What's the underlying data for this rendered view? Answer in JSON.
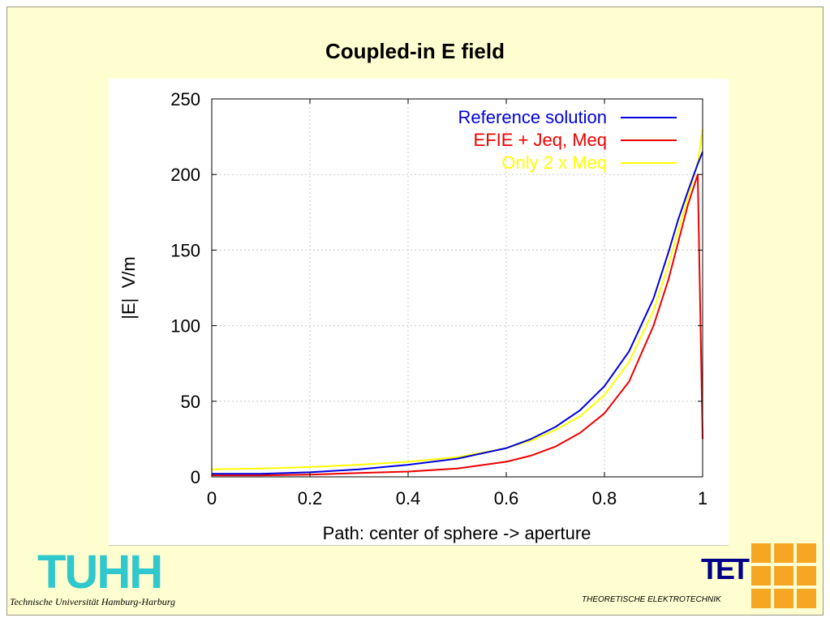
{
  "slide": {
    "title": "Coupled-in E field"
  },
  "footer": {
    "left_logo_text": "TUHH",
    "left_logo_subtitle": "Technische Universität Hamburg-Harburg",
    "right_logo_text": "TET",
    "right_logo_subtitle": "THEORETISCHE ELEKTROTECHNIK",
    "left_logo_color": "#30c8cc",
    "right_logo_color": "#000088",
    "right_grid_color": "#f5a623"
  },
  "chart_data": {
    "type": "line",
    "title": "",
    "xlabel": "Path: center of sphere -> aperture",
    "ylabel": "|E|  V/m",
    "xlim": [
      0,
      1
    ],
    "ylim": [
      0,
      250
    ],
    "xticks": [
      "0",
      "0.2",
      "0.4",
      "0.6",
      "0.8",
      "1"
    ],
    "yticks": [
      "0",
      "50",
      "100",
      "150",
      "200",
      "250"
    ],
    "grid": true,
    "legend_position": "top-right",
    "x": [
      0,
      0.1,
      0.2,
      0.3,
      0.4,
      0.5,
      0.6,
      0.65,
      0.7,
      0.75,
      0.8,
      0.85,
      0.9,
      0.93,
      0.95,
      0.97,
      0.99,
      1.0
    ],
    "series": [
      {
        "name": "Reference solution",
        "color": "#0000dd",
        "values": [
          2,
          2,
          3,
          5,
          8,
          12,
          19,
          25,
          33,
          44,
          60,
          83,
          118,
          148,
          170,
          189,
          207,
          215
        ]
      },
      {
        "name": "EFIE + Jeq, Meq",
        "color": "#ee0000",
        "values": [
          1,
          1,
          1.5,
          2.5,
          3.5,
          5.5,
          10,
          14,
          20,
          29,
          42,
          63,
          100,
          130,
          155,
          180,
          200,
          25
        ]
      },
      {
        "name": "Only 2 x Meq",
        "color": "#ffff00",
        "values": [
          5,
          5.5,
          6.5,
          8,
          10,
          13,
          19,
          24,
          31,
          40,
          54,
          76,
          110,
          140,
          163,
          185,
          208,
          230
        ]
      }
    ]
  }
}
